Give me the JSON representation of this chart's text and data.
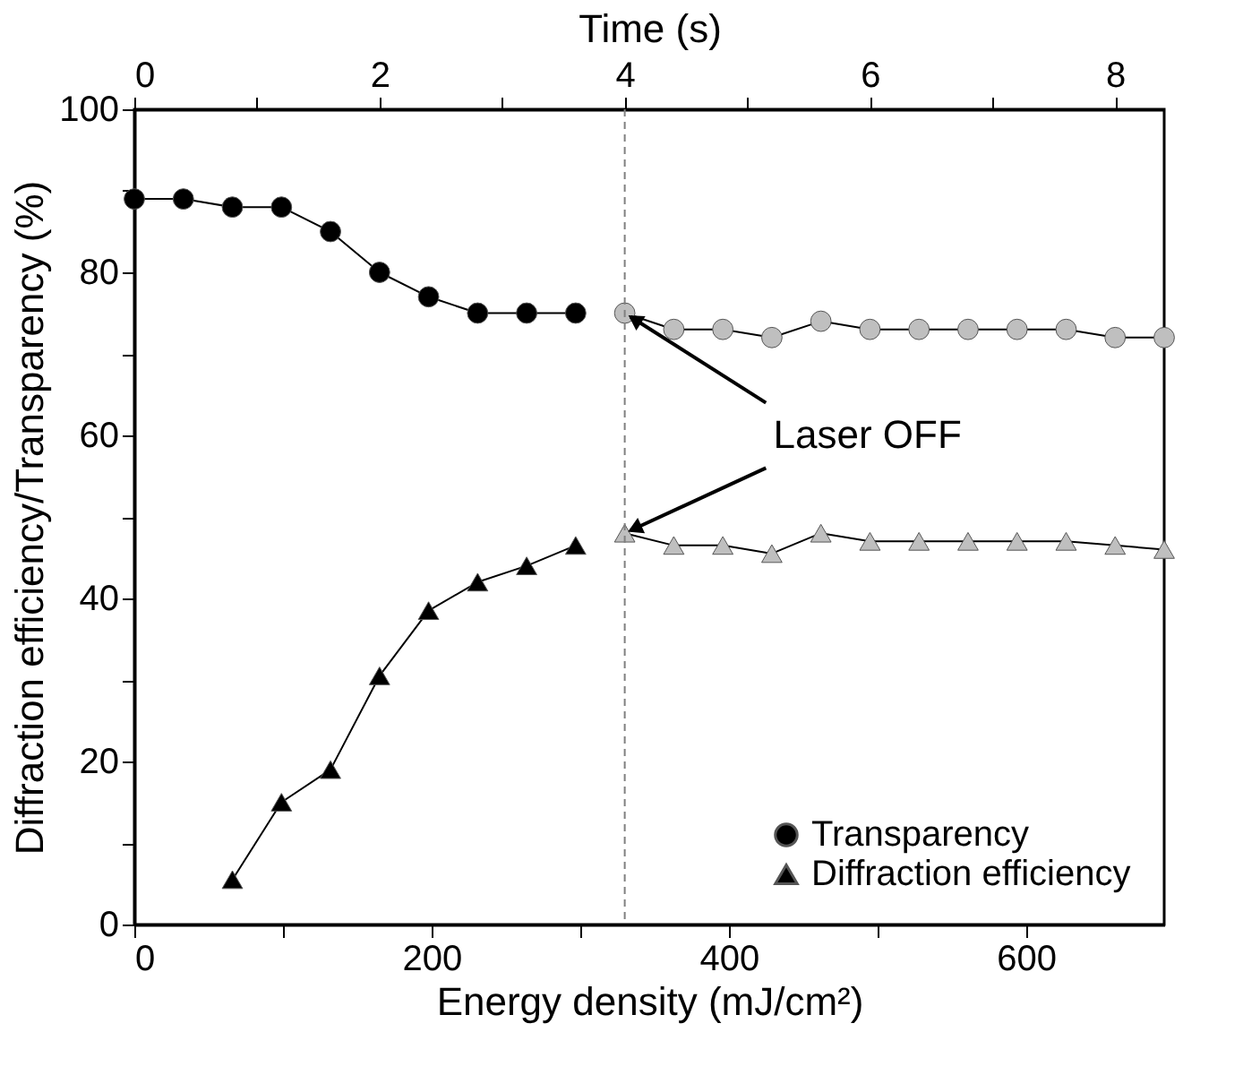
{
  "chart_data": {
    "type": "line",
    "xlabel": "Energy density (mJ/cm²)",
    "ylabel": "Diffraction efficiency/Transparency (%)",
    "x2label": "Time (s)",
    "xlim": [
      0,
      693
    ],
    "xticks": [
      0,
      {
        "value": 100,
        "label": null
      },
      200,
      {
        "value": 300,
        "label": null
      },
      400,
      {
        "value": 500,
        "label": null
      },
      600
    ],
    "x2lim": [
      0,
      8.4
    ],
    "x2ticks": [
      0,
      {
        "value": 1,
        "label": null
      },
      2,
      {
        "value": 3,
        "label": null
      },
      4,
      {
        "value": 5,
        "label": null
      },
      6,
      {
        "value": 7,
        "label": null
      },
      8
    ],
    "ylim": [
      0,
      100
    ],
    "yticks": [
      0,
      {
        "value": 10,
        "label": null
      },
      20,
      {
        "value": 30,
        "label": null
      },
      40,
      {
        "value": 50,
        "label": null
      },
      60,
      {
        "value": 70,
        "label": null
      },
      80,
      {
        "value": 90,
        "label": null
      },
      100
    ],
    "grid": false,
    "legend": "bottom right",
    "series": [
      {
        "name": "Transparency",
        "color": "#000000",
        "marker": "circle",
        "x": [
          0,
          33,
          66,
          99,
          132,
          165,
          198,
          231,
          264,
          297
        ],
        "values": [
          89,
          89,
          88,
          88,
          85,
          80,
          77,
          75,
          75,
          75
        ]
      },
      {
        "color": "#bfbfbf",
        "marker": "circle",
        "x": [
          330,
          363,
          396,
          429,
          462,
          495,
          528,
          561,
          594,
          627,
          660,
          693
        ],
        "values": [
          75,
          73,
          73,
          72,
          74,
          73,
          73,
          73,
          73,
          73,
          72,
          72
        ]
      },
      {
        "name": "Diffraction efficiency",
        "color": "#000000",
        "marker": "triangle",
        "x": [
          66,
          99,
          132,
          165,
          198,
          231,
          264,
          297
        ],
        "values": [
          5.5,
          15,
          19,
          30.5,
          38.5,
          42,
          44,
          46.5
        ]
      },
      {
        "color": "#bfbfbf",
        "marker": "triangle",
        "x": [
          330,
          363,
          396,
          429,
          462,
          495,
          528,
          561,
          594,
          627,
          660,
          693
        ],
        "values": [
          48,
          46.5,
          46.5,
          45.5,
          48,
          47,
          47,
          47,
          47,
          47,
          46.5,
          46
        ]
      }
    ],
    "ref_lines": [
      {
        "axis": "x",
        "value": 330,
        "color": "#808080",
        "line_style": "dashed"
      }
    ],
    "annotations": [
      {
        "text": "Laser OFF",
        "x": 330,
        "y": 75
      }
    ]
  }
}
